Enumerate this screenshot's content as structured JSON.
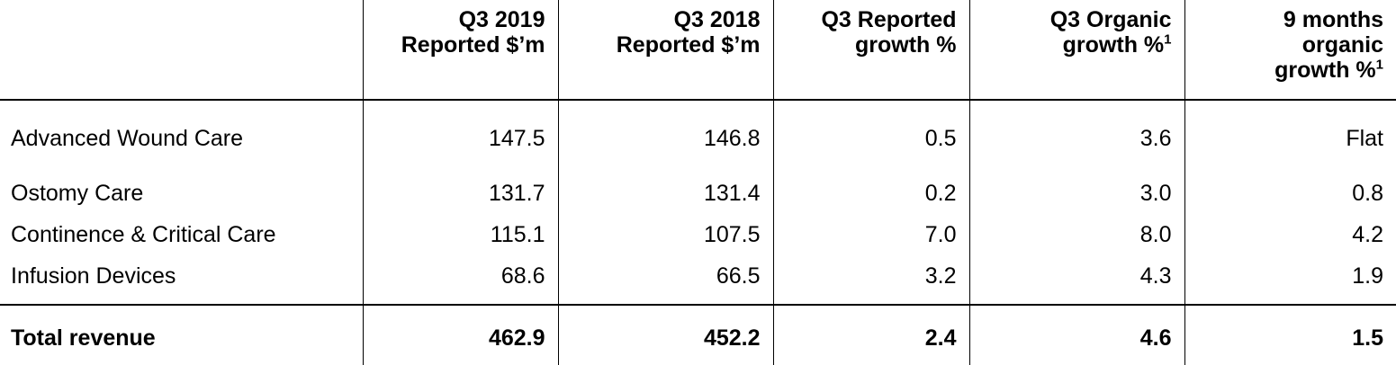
{
  "columns": [
    {
      "line1": "Q3 2019",
      "line2": "Reported $’m",
      "line3": "",
      "sup": ""
    },
    {
      "line1": "Q3 2018",
      "line2": "Reported $’m",
      "line3": "",
      "sup": ""
    },
    {
      "line1": "Q3 Reported",
      "line2": "growth %",
      "line3": "",
      "sup": ""
    },
    {
      "line1": "Q3 Organic",
      "line2": "growth %",
      "line3": "",
      "sup": "1"
    },
    {
      "line1": "9 months",
      "line2": "organic",
      "line3": "growth %",
      "sup": "1"
    }
  ],
  "rows": [
    {
      "label": "Advanced Wound Care",
      "values": [
        "147.5",
        "146.8",
        "0.5",
        "3.6",
        "Flat"
      ]
    },
    {
      "label": "Ostomy Care",
      "values": [
        "131.7",
        "131.4",
        "0.2",
        "3.0",
        "0.8"
      ]
    },
    {
      "label": "Continence & Critical Care",
      "values": [
        "115.1",
        "107.5",
        "7.0",
        "8.0",
        "4.2"
      ]
    },
    {
      "label": "Infusion Devices",
      "values": [
        "68.6",
        "66.5",
        "3.2",
        "4.3",
        "1.9"
      ]
    }
  ],
  "total": {
    "label": "Total revenue",
    "values": [
      "462.9",
      "452.2",
      "2.4",
      "4.6",
      "1.5"
    ]
  }
}
